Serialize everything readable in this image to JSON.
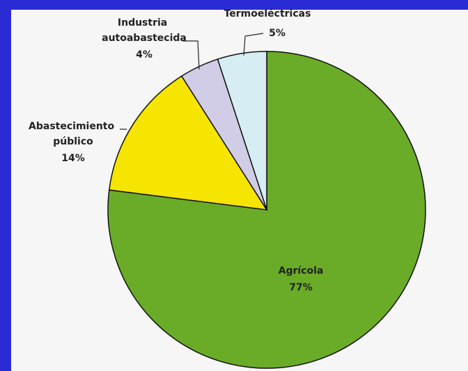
{
  "chart_data": {
    "type": "pie",
    "categories": [
      "Agrícola",
      "Abastecimiento público",
      "Industria autoabastecida",
      "Termoeléctricas"
    ],
    "values": [
      77,
      14,
      4,
      5
    ],
    "value_labels": [
      "77%",
      "14%",
      "4%",
      "5%"
    ],
    "colors": [
      "#6aab28",
      "#f5e500",
      "#d1cde6",
      "#d6edf3"
    ]
  }
}
